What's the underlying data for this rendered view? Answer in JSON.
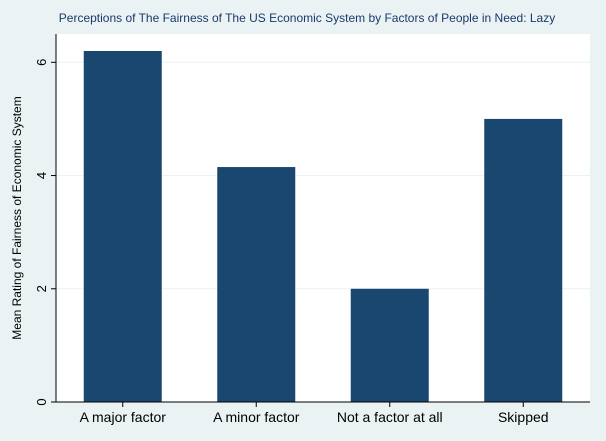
{
  "chart_data": {
    "type": "bar",
    "title": "Perceptions of The Fairness of The US Economic System by Factors of People in Need: Lazy",
    "xlabel": "",
    "ylabel": "Mean Rating of Fairness of Economic System",
    "categories": [
      "A major factor",
      "A minor factor",
      "Not a factor at all",
      "Skipped"
    ],
    "values": [
      6.2,
      4.15,
      2.0,
      5.0
    ],
    "ylim": [
      0,
      6.5
    ],
    "yticks": [
      0,
      2,
      4,
      6
    ],
    "ytick_labels": [
      "0",
      "2",
      "4",
      "6"
    ],
    "grid": true,
    "bar_color": "#1a476f",
    "grid_color": "#eaf2f3",
    "plot_bg": "#ffffff",
    "outer_bg": "#eaf2f3"
  }
}
